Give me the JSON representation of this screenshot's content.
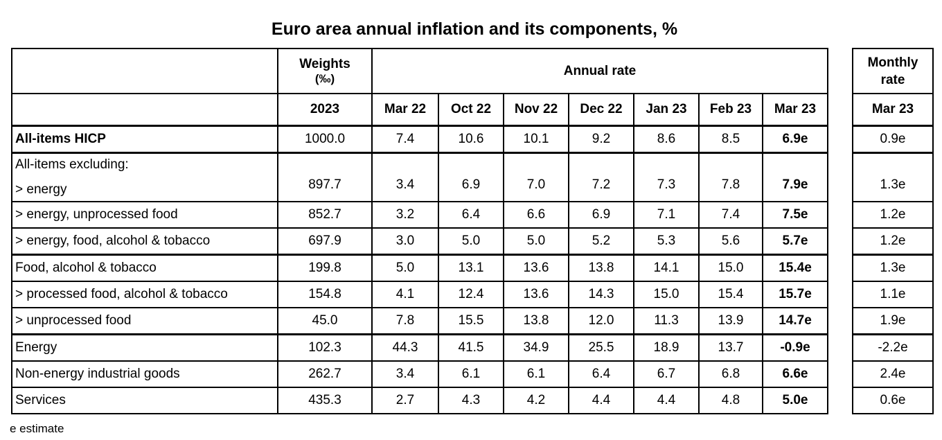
{
  "title": "Euro area annual inflation and its components, %",
  "header": {
    "weights_label": "Weights",
    "weights_unit": "(‰)",
    "annual_rate_label": "Annual rate",
    "monthly_rate_label": "Monthly rate",
    "weights_year": "2023",
    "annual_months": [
      "Mar 22",
      "Oct 22",
      "Nov 22",
      "Dec 22",
      "Jan 23",
      "Feb 23",
      "Mar 23"
    ],
    "monthly_month": "Mar 23"
  },
  "rows": [
    {
      "label": "All-items HICP",
      "weight": "1000.0",
      "annual": [
        "7.4",
        "10.6",
        "10.1",
        "9.2",
        "8.6",
        "8.5",
        "6.9e"
      ],
      "monthly": "0.9e"
    },
    {
      "group_label": "All-items excluding:",
      "label": "> energy",
      "weight": "897.7",
      "annual": [
        "3.4",
        "6.9",
        "7.0",
        "7.2",
        "7.3",
        "7.8",
        "7.9e"
      ],
      "monthly": "1.3e"
    },
    {
      "label": "> energy, unprocessed food",
      "weight": "852.7",
      "annual": [
        "3.2",
        "6.4",
        "6.6",
        "6.9",
        "7.1",
        "7.4",
        "7.5e"
      ],
      "monthly": "1.2e"
    },
    {
      "label": "> energy, food, alcohol & tobacco",
      "weight": "697.9",
      "annual": [
        "3.0",
        "5.0",
        "5.0",
        "5.2",
        "5.3",
        "5.6",
        "5.7e"
      ],
      "monthly": "1.2e"
    },
    {
      "label": "Food, alcohol & tobacco",
      "weight": "199.8",
      "annual": [
        "5.0",
        "13.1",
        "13.6",
        "13.8",
        "14.1",
        "15.0",
        "15.4e"
      ],
      "monthly": "1.3e"
    },
    {
      "label": "> processed food, alcohol & tobacco",
      "weight": "154.8",
      "annual": [
        "4.1",
        "12.4",
        "13.6",
        "14.3",
        "15.0",
        "15.4",
        "15.7e"
      ],
      "monthly": "1.1e"
    },
    {
      "label": "> unprocessed food",
      "weight": "45.0",
      "annual": [
        "7.8",
        "15.5",
        "13.8",
        "12.0",
        "11.3",
        "13.9",
        "14.7e"
      ],
      "monthly": "1.9e"
    },
    {
      "label": "Energy",
      "weight": "102.3",
      "annual": [
        "44.3",
        "41.5",
        "34.9",
        "25.5",
        "18.9",
        "13.7",
        "-0.9e"
      ],
      "monthly": "-2.2e"
    },
    {
      "label": "Non-energy industrial goods",
      "weight": "262.7",
      "annual": [
        "3.4",
        "6.1",
        "6.1",
        "6.4",
        "6.7",
        "6.8",
        "6.6e"
      ],
      "monthly": "2.4e"
    },
    {
      "label": "Services",
      "weight": "435.3",
      "annual": [
        "2.7",
        "4.3",
        "4.2",
        "4.4",
        "4.4",
        "4.8",
        "5.0e"
      ],
      "monthly": "0.6e"
    }
  ],
  "footnote": "e estimate"
}
